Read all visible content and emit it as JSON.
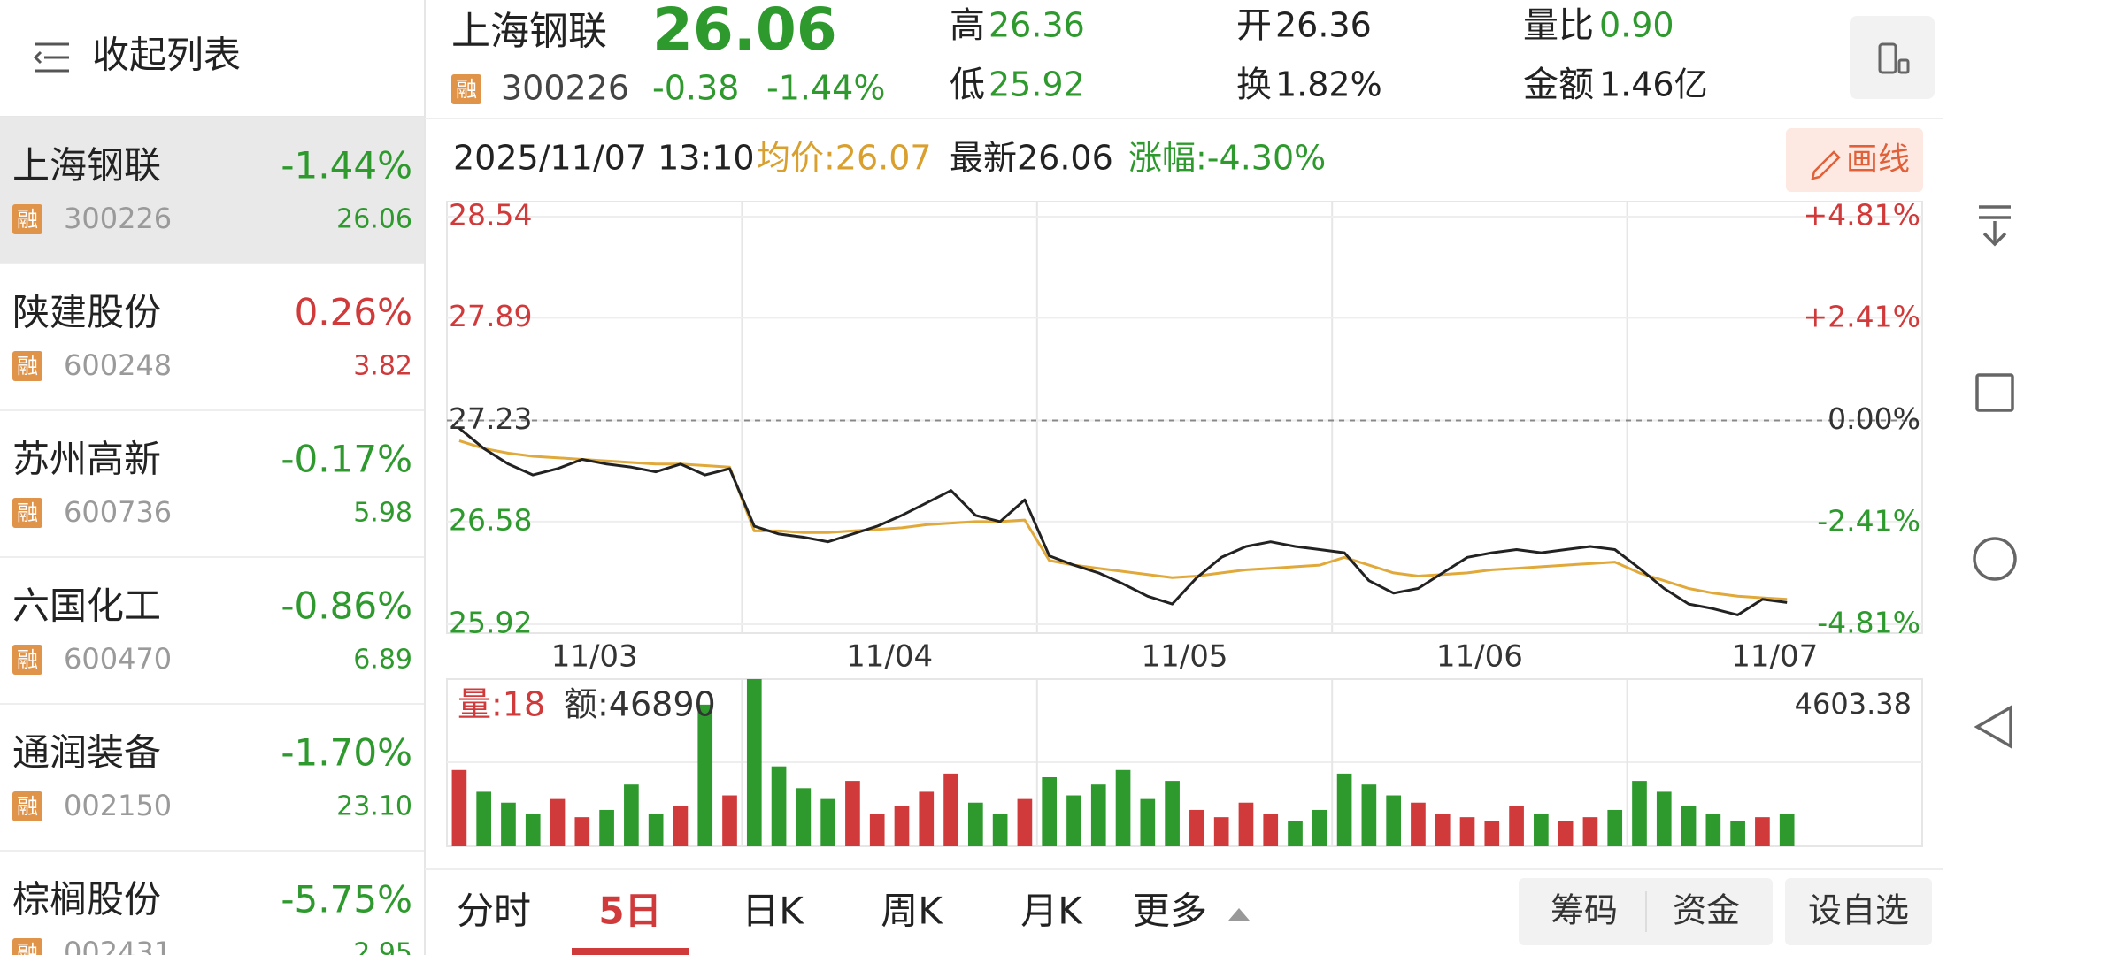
{
  "sidebar": {
    "collapse": "收起列表",
    "stocks": [
      {
        "name": "上海钢联",
        "tag": "融",
        "code": "300226",
        "change": "-1.44%",
        "price": "26.06"
      },
      {
        "name": "陕建股份",
        "tag": "融",
        "code": "600248",
        "change": "0.26%",
        "price": "3.82"
      },
      {
        "name": "苏州高新",
        "tag": "融",
        "code": "600736",
        "change": "-0.17%",
        "price": "5.98"
      },
      {
        "name": "六国化工",
        "tag": "融",
        "code": "600470",
        "change": "-0.86%",
        "price": "6.89"
      },
      {
        "name": "通润装备",
        "tag": "融",
        "code": "002150",
        "change": "-1.70%",
        "price": "23.10"
      },
      {
        "name": "棕榈股份",
        "tag": "融",
        "code": "002431",
        "change": "-5.75%",
        "price": "2.95"
      }
    ]
  },
  "header": {
    "name": "上海钢联",
    "tag": "融",
    "code": "300226",
    "price": "26.06",
    "change": "-0.38",
    "pct": "-1.44%",
    "stats": [
      {
        "label": "高",
        "value": "26.36",
        "color": "#2e9a2e"
      },
      {
        "label": "低",
        "value": "25.92",
        "color": "#2e9a2e"
      },
      {
        "label": "开",
        "value": "26.36",
        "color": "#222222"
      },
      {
        "label": "换",
        "value": "1.82%",
        "color": "#222222"
      },
      {
        "label": "量比",
        "value": "0.90",
        "color": "#2e9a2e"
      },
      {
        "label": "金额",
        "value": "1.46亿",
        "color": "#222222"
      }
    ]
  },
  "info": {
    "time": "2025/11/07 13:10",
    "avg": "均价:26.07",
    "latest": "最新26.06",
    "rise": "涨幅:-4.30%",
    "draw": "画线"
  },
  "tabs": [
    "分时",
    "5日",
    "日K",
    "周K",
    "月K",
    "更多"
  ],
  "active_tab": 1,
  "buttons": [
    "筹码",
    "资金",
    "设自选"
  ],
  "chart_data": [
    {
      "type": "line",
      "x": [
        0,
        1,
        2,
        3,
        4,
        5,
        6,
        7,
        8,
        9,
        10,
        11,
        12,
        13,
        14,
        15,
        16,
        17,
        18,
        19,
        20,
        21,
        22,
        23,
        24,
        25,
        26,
        27,
        28,
        29,
        30,
        31,
        32,
        33,
        34,
        35,
        36,
        37,
        38,
        39,
        40,
        41,
        42,
        43,
        44,
        45,
        46,
        47,
        48,
        49,
        50,
        51,
        52,
        53,
        54
      ],
      "xlim": [
        0,
        60
      ],
      "xticks": [
        {
          "value": 6,
          "label": "11/03"
        },
        {
          "value": 18,
          "label": "11/04"
        },
        {
          "value": 30,
          "label": "11/05"
        },
        {
          "value": 42,
          "label": "11/06"
        },
        {
          "value": 54,
          "label": "11/07"
        }
      ],
      "ylim": [
        25.92,
        28.54
      ],
      "yticks": [
        28.54,
        27.89,
        27.23,
        26.58,
        25.92
      ],
      "y2lim": [
        -4.81,
        4.81
      ],
      "y2ticks": [
        {
          "value": 4.81,
          "label": "+4.81%"
        },
        {
          "value": 2.41,
          "label": "+2.41%"
        },
        {
          "value": 0,
          "label": "0.00%"
        },
        {
          "value": -2.41,
          "label": "-2.41%"
        },
        {
          "value": -4.81,
          "label": "-4.81%"
        }
      ],
      "series": [
        {
          "name": "最新",
          "color": "#222222",
          "values": [
            27.18,
            27.05,
            26.95,
            26.88,
            26.92,
            26.98,
            26.95,
            26.93,
            26.9,
            26.95,
            26.88,
            26.92,
            26.55,
            26.5,
            26.48,
            26.45,
            26.5,
            26.55,
            26.62,
            26.7,
            26.78,
            26.62,
            26.58,
            26.72,
            26.36,
            26.3,
            26.25,
            26.18,
            26.1,
            26.05,
            26.22,
            26.35,
            26.42,
            26.45,
            26.42,
            26.4,
            26.38,
            26.2,
            26.12,
            26.15,
            26.25,
            26.35,
            26.38,
            26.4,
            26.38,
            26.4,
            26.42,
            26.4,
            26.28,
            26.15,
            26.05,
            26.02,
            25.98,
            26.08,
            26.06
          ]
        },
        {
          "name": "均价",
          "color": "#e0a93a",
          "values": [
            27.1,
            27.05,
            27.02,
            27.0,
            26.99,
            26.98,
            26.97,
            26.96,
            26.95,
            26.95,
            26.94,
            26.93,
            26.52,
            26.52,
            26.51,
            26.51,
            26.52,
            26.53,
            26.54,
            26.56,
            26.57,
            26.58,
            26.58,
            26.59,
            26.33,
            26.3,
            26.28,
            26.26,
            26.24,
            26.22,
            26.23,
            26.25,
            26.27,
            26.28,
            26.29,
            26.3,
            26.35,
            26.3,
            26.25,
            26.23,
            26.24,
            26.25,
            26.27,
            26.28,
            26.29,
            26.3,
            26.31,
            26.32,
            26.25,
            26.2,
            26.15,
            26.12,
            26.1,
            26.09,
            26.08
          ]
        }
      ]
    },
    {
      "type": "bar",
      "annotations": [
        "量:18",
        "额:46890"
      ],
      "x": [
        0,
        1,
        2,
        3,
        4,
        5,
        6,
        7,
        8,
        9,
        10,
        11,
        12,
        13,
        14,
        15,
        16,
        17,
        18,
        19,
        20,
        21,
        22,
        23,
        24,
        25,
        26,
        27,
        28,
        29,
        30,
        31,
        32,
        33,
        34,
        35,
        36,
        37,
        38,
        39,
        40,
        41,
        42,
        43,
        44,
        45,
        46,
        47,
        48,
        49,
        50,
        51,
        52,
        53,
        54
      ],
      "xlim": [
        0,
        60
      ],
      "ylim": [
        0,
        4603.38
      ],
      "yticks": [
        4603.38
      ],
      "values": [
        2100,
        1500,
        1200,
        900,
        1300,
        800,
        1000,
        1700,
        900,
        1100,
        3900,
        1400,
        4603.38,
        2200,
        1600,
        1300,
        1800,
        900,
        1100,
        1500,
        2000,
        1200,
        900,
        1300,
        1900,
        1400,
        1700,
        2100,
        1300,
        1800,
        1000,
        800,
        1200,
        900,
        700,
        1000,
        2000,
        1700,
        1400,
        1200,
        900,
        800,
        700,
        1100,
        900,
        700,
        800,
        1000,
        1800,
        1500,
        1100,
        900,
        700,
        800,
        900
      ]
    }
  ]
}
